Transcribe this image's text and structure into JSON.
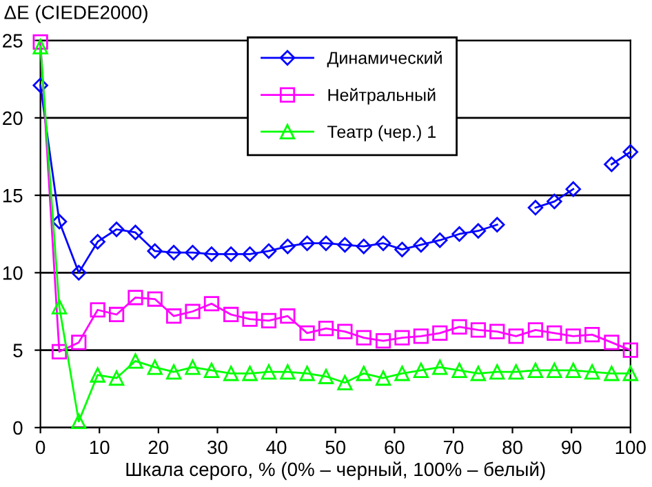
{
  "chart_data": {
    "type": "line",
    "ylabel": "ΔE (CIEDE2000)",
    "xlabel": "Шкала серого, % (0% – черный, 100% – белый)",
    "x": [
      0,
      3.2,
      6.5,
      9.7,
      12.9,
      16.1,
      19.4,
      22.6,
      25.8,
      29.0,
      32.3,
      35.5,
      38.7,
      41.9,
      45.2,
      48.4,
      51.6,
      54.8,
      58.1,
      61.3,
      64.5,
      67.7,
      71.0,
      74.2,
      77.4,
      80.6,
      83.9,
      87.1,
      90.3,
      93.5,
      96.8,
      100
    ],
    "series": [
      {
        "name": "Динамический",
        "color": "#0000ff",
        "marker": "diamond",
        "values": [
          22.1,
          13.3,
          10.0,
          12.0,
          12.8,
          12.6,
          11.4,
          11.3,
          11.3,
          11.2,
          11.2,
          11.2,
          11.4,
          11.7,
          11.9,
          11.9,
          11.8,
          11.7,
          11.9,
          11.5,
          11.8,
          12.1,
          12.5,
          12.7,
          13.1,
          null,
          14.2,
          14.6,
          15.4,
          null,
          17.0,
          17.8
        ]
      },
      {
        "name": "Нейтральный",
        "color": "#ff00ff",
        "marker": "square",
        "values": [
          24.9,
          4.9,
          5.5,
          7.6,
          7.3,
          8.4,
          8.3,
          7.2,
          7.5,
          8.0,
          7.3,
          7.0,
          6.9,
          7.2,
          6.1,
          6.4,
          6.2,
          5.8,
          5.6,
          5.8,
          5.9,
          6.1,
          6.5,
          6.3,
          6.2,
          5.9,
          6.3,
          6.1,
          5.9,
          6.0,
          5.5,
          5.0
        ]
      },
      {
        "name": "Театр (чер.) 1",
        "color": "#00ff00",
        "marker": "triangle",
        "values": [
          24.6,
          7.8,
          0.4,
          3.4,
          3.2,
          4.3,
          3.9,
          3.6,
          3.9,
          3.7,
          3.5,
          3.5,
          3.6,
          3.6,
          3.5,
          3.3,
          2.9,
          3.5,
          3.2,
          3.5,
          3.7,
          3.9,
          3.7,
          3.5,
          3.6,
          3.6,
          3.7,
          3.7,
          3.7,
          3.6,
          3.5,
          3.5
        ]
      }
    ],
    "xlim": [
      0,
      100
    ],
    "xticks": [
      0,
      10,
      20,
      30,
      40,
      50,
      60,
      70,
      80,
      90,
      100
    ],
    "ylim": [
      0,
      25
    ],
    "yticks": [
      0,
      5,
      10,
      15,
      20,
      25
    ],
    "grid": "y",
    "legend": "top right"
  }
}
